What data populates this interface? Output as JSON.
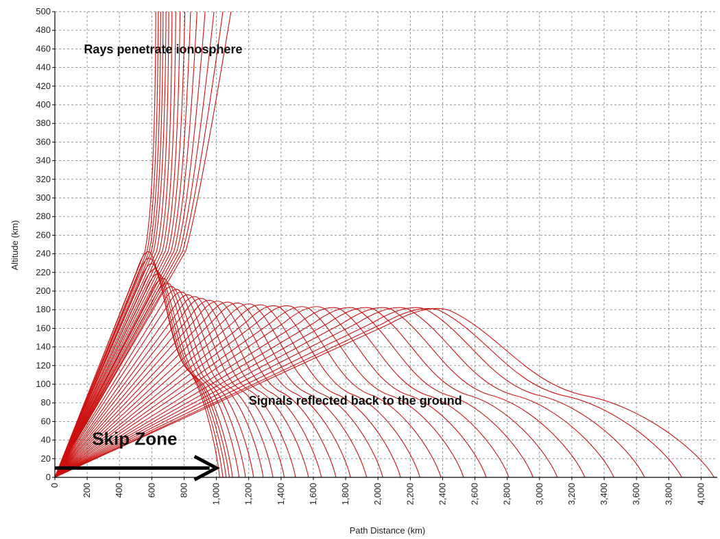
{
  "chart_data": {
    "type": "line",
    "title": "",
    "xlabel": "Path Distance (km)",
    "ylabel": "Altitude (km)",
    "xlim": [
      0,
      4100
    ],
    "ylim": [
      0,
      500
    ],
    "xticks": [
      0,
      200,
      400,
      600,
      800,
      1000,
      1200,
      1400,
      1600,
      1800,
      2000,
      2200,
      2400,
      2600,
      2800,
      3000,
      3200,
      3400,
      3600,
      3800,
      4000
    ],
    "xtick_labels": [
      "0",
      "200",
      "400",
      "600",
      "800",
      "1,000",
      "1,200",
      "1,400",
      "1,600",
      "1,800",
      "2,000",
      "2,200",
      "2,400",
      "2,600",
      "2,800",
      "3,000",
      "3,200",
      "3,400",
      "3,600",
      "3,800",
      "4,000"
    ],
    "yticks": [
      0,
      20,
      40,
      60,
      80,
      100,
      120,
      140,
      160,
      180,
      200,
      220,
      240,
      260,
      280,
      300,
      320,
      340,
      360,
      380,
      400,
      420,
      440,
      460,
      480,
      500
    ],
    "grid": true,
    "line_color": "#cc1111",
    "penetrating_rays": [
      {
        "exit_x": 620,
        "top_x": 625
      },
      {
        "exit_x": 635,
        "top_x": 640
      },
      {
        "exit_x": 650,
        "top_x": 655
      },
      {
        "exit_x": 665,
        "top_x": 670
      },
      {
        "exit_x": 680,
        "top_x": 688
      },
      {
        "exit_x": 700,
        "top_x": 705
      },
      {
        "exit_x": 720,
        "top_x": 725
      },
      {
        "exit_x": 740,
        "top_x": 748
      },
      {
        "exit_x": 760,
        "top_x": 775
      },
      {
        "exit_x": 780,
        "top_x": 805
      },
      {
        "exit_x": 800,
        "top_x": 840
      },
      {
        "exit_x": 820,
        "top_x": 880
      },
      {
        "exit_x": 840,
        "top_x": 930
      },
      {
        "exit_x": 860,
        "top_x": 985
      },
      {
        "exit_x": 880,
        "top_x": 1040
      },
      {
        "exit_x": 900,
        "top_x": 1090
      }
    ],
    "reflected_rays": [
      {
        "ground_x": 1020,
        "apex_x": 560,
        "apex_y": 245
      },
      {
        "ground_x": 1040,
        "apex_x": 565,
        "apex_y": 238
      },
      {
        "ground_x": 1060,
        "apex_x": 580,
        "apex_y": 232
      },
      {
        "ground_x": 1080,
        "apex_x": 600,
        "apex_y": 226
      },
      {
        "ground_x": 1100,
        "apex_x": 620,
        "apex_y": 221
      },
      {
        "ground_x": 1140,
        "apex_x": 650,
        "apex_y": 216
      },
      {
        "ground_x": 1180,
        "apex_x": 675,
        "apex_y": 211
      },
      {
        "ground_x": 1230,
        "apex_x": 700,
        "apex_y": 207
      },
      {
        "ground_x": 1290,
        "apex_x": 730,
        "apex_y": 204
      },
      {
        "ground_x": 1350,
        "apex_x": 760,
        "apex_y": 201
      },
      {
        "ground_x": 1420,
        "apex_x": 800,
        "apex_y": 198
      },
      {
        "ground_x": 1490,
        "apex_x": 840,
        "apex_y": 196
      },
      {
        "ground_x": 1570,
        "apex_x": 880,
        "apex_y": 194
      },
      {
        "ground_x": 1650,
        "apex_x": 930,
        "apex_y": 192
      },
      {
        "ground_x": 1740,
        "apex_x": 980,
        "apex_y": 191
      },
      {
        "ground_x": 1830,
        "apex_x": 1040,
        "apex_y": 190
      },
      {
        "ground_x": 1930,
        "apex_x": 1100,
        "apex_y": 189
      },
      {
        "ground_x": 2030,
        "apex_x": 1170,
        "apex_y": 188
      },
      {
        "ground_x": 2140,
        "apex_x": 1240,
        "apex_y": 187
      },
      {
        "ground_x": 2260,
        "apex_x": 1320,
        "apex_y": 186
      },
      {
        "ground_x": 2390,
        "apex_x": 1400,
        "apex_y": 186
      },
      {
        "ground_x": 2530,
        "apex_x": 1490,
        "apex_y": 185
      },
      {
        "ground_x": 2670,
        "apex_x": 1580,
        "apex_y": 185
      },
      {
        "ground_x": 2810,
        "apex_x": 1680,
        "apex_y": 184
      },
      {
        "ground_x": 2960,
        "apex_x": 1780,
        "apex_y": 184
      },
      {
        "ground_x": 3110,
        "apex_x": 1880,
        "apex_y": 184
      },
      {
        "ground_x": 3280,
        "apex_x": 1980,
        "apex_y": 184
      },
      {
        "ground_x": 3460,
        "apex_x": 2080,
        "apex_y": 184
      },
      {
        "ground_x": 3650,
        "apex_x": 2180,
        "apex_y": 184
      },
      {
        "ground_x": 3880,
        "apex_x": 2250,
        "apex_y": 183
      },
      {
        "ground_x": 4080,
        "apex_x": 2300,
        "apex_y": 183
      }
    ],
    "annotations": [
      {
        "id": "penetrate",
        "text": "Rays penetrate ionosphere",
        "x": 180,
        "y": 455,
        "size": 18
      },
      {
        "id": "reflected",
        "text": "Signals reflected back to the ground",
        "x": 1200,
        "y": 78,
        "size": 18
      },
      {
        "id": "skip",
        "text": "Skip Zone",
        "x": 230,
        "y": 35,
        "size": 26
      }
    ],
    "skip_zone_arrow": {
      "x_from": 0,
      "x_to": 1000,
      "y": 10
    }
  }
}
